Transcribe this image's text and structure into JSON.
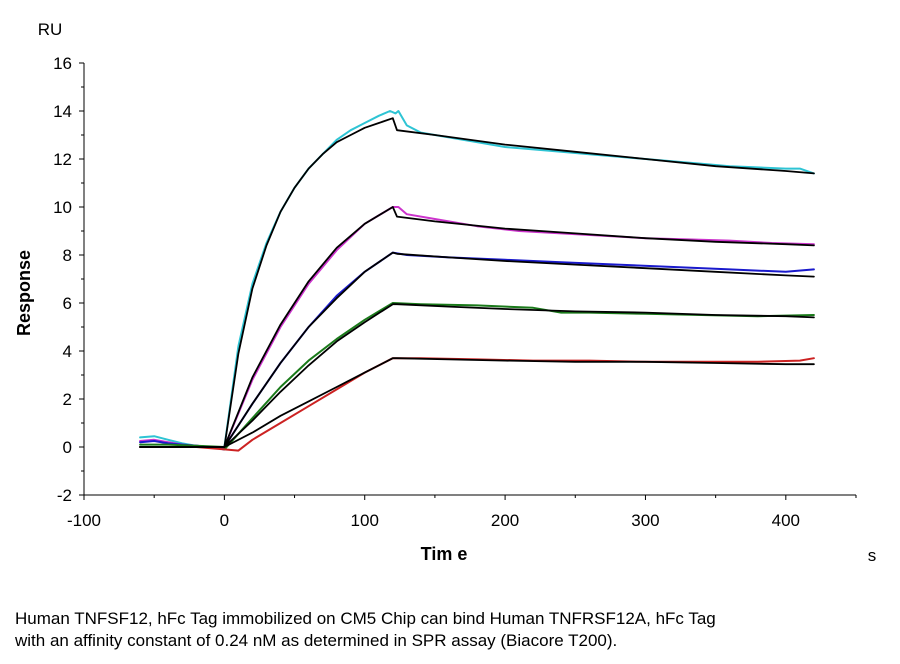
{
  "chart_data": {
    "type": "line",
    "xlabel": "Tim e",
    "xunit": "s",
    "ylabel": "Response",
    "yunit": "RU",
    "xlim": [
      -100,
      450
    ],
    "ylim": [
      -2,
      16
    ],
    "xticks": [
      -100,
      0,
      100,
      200,
      300,
      400
    ],
    "yticks": [
      -2,
      0,
      2,
      4,
      6,
      8,
      10,
      12,
      14,
      16
    ],
    "grid": false,
    "legend": "none",
    "series": [
      {
        "color": "#2ec4d4",
        "points": [
          [
            -60,
            0.4
          ],
          [
            -50,
            0.45
          ],
          [
            -40,
            0.3
          ],
          [
            -30,
            0.15
          ],
          [
            -20,
            0.05
          ],
          [
            -10,
            0.0
          ],
          [
            0,
            -0.1
          ],
          [
            0,
            0
          ],
          [
            10,
            4.2
          ],
          [
            20,
            6.8
          ],
          [
            30,
            8.5
          ],
          [
            40,
            9.8
          ],
          [
            50,
            10.8
          ],
          [
            60,
            11.6
          ],
          [
            70,
            12.2
          ],
          [
            80,
            12.8
          ],
          [
            90,
            13.2
          ],
          [
            100,
            13.5
          ],
          [
            110,
            13.8
          ],
          [
            118,
            14.0
          ],
          [
            122,
            13.9
          ],
          [
            124,
            14.0
          ],
          [
            130,
            13.4
          ],
          [
            140,
            13.1
          ],
          [
            160,
            12.9
          ],
          [
            180,
            12.7
          ],
          [
            200,
            12.5
          ],
          [
            220,
            12.4
          ],
          [
            240,
            12.3
          ],
          [
            260,
            12.2
          ],
          [
            280,
            12.1
          ],
          [
            300,
            12.0
          ],
          [
            320,
            11.9
          ],
          [
            340,
            11.8
          ],
          [
            360,
            11.7
          ],
          [
            380,
            11.65
          ],
          [
            400,
            11.6
          ],
          [
            410,
            11.6
          ],
          [
            420,
            11.4
          ]
        ]
      },
      {
        "color": "#cc33cc",
        "points": [
          [
            -60,
            0.25
          ],
          [
            -50,
            0.3
          ],
          [
            -40,
            0.2
          ],
          [
            -30,
            0.1
          ],
          [
            -20,
            0.05
          ],
          [
            -10,
            0.0
          ],
          [
            0,
            -0.1
          ],
          [
            0,
            0
          ],
          [
            20,
            2.8
          ],
          [
            40,
            5.0
          ],
          [
            60,
            6.8
          ],
          [
            80,
            8.2
          ],
          [
            100,
            9.3
          ],
          [
            120,
            10.0
          ],
          [
            124,
            10.0
          ],
          [
            130,
            9.7
          ],
          [
            150,
            9.5
          ],
          [
            180,
            9.2
          ],
          [
            210,
            9.0
          ],
          [
            240,
            8.9
          ],
          [
            270,
            8.8
          ],
          [
            300,
            8.7
          ],
          [
            330,
            8.65
          ],
          [
            360,
            8.6
          ],
          [
            390,
            8.5
          ],
          [
            420,
            8.45
          ]
        ]
      },
      {
        "color": "#1a1acc",
        "points": [
          [
            -60,
            0.2
          ],
          [
            -50,
            0.25
          ],
          [
            -40,
            0.15
          ],
          [
            -30,
            0.1
          ],
          [
            -20,
            0.05
          ],
          [
            -10,
            0.0
          ],
          [
            0,
            -0.1
          ],
          [
            0,
            0
          ],
          [
            20,
            1.8
          ],
          [
            40,
            3.5
          ],
          [
            60,
            5.0
          ],
          [
            80,
            6.3
          ],
          [
            100,
            7.3
          ],
          [
            120,
            8.1
          ],
          [
            130,
            8.0
          ],
          [
            160,
            7.9
          ],
          [
            200,
            7.8
          ],
          [
            240,
            7.7
          ],
          [
            280,
            7.6
          ],
          [
            320,
            7.5
          ],
          [
            360,
            7.4
          ],
          [
            400,
            7.3
          ],
          [
            420,
            7.4
          ]
        ]
      },
      {
        "color": "#1a7a1a",
        "points": [
          [
            -60,
            0.1
          ],
          [
            -40,
            0.1
          ],
          [
            -20,
            0.05
          ],
          [
            0,
            0.0
          ],
          [
            0,
            -0.1
          ],
          [
            20,
            1.2
          ],
          [
            40,
            2.5
          ],
          [
            60,
            3.6
          ],
          [
            80,
            4.5
          ],
          [
            100,
            5.3
          ],
          [
            120,
            6.0
          ],
          [
            140,
            5.95
          ],
          [
            180,
            5.9
          ],
          [
            220,
            5.8
          ],
          [
            240,
            5.6
          ],
          [
            260,
            5.6
          ],
          [
            300,
            5.55
          ],
          [
            340,
            5.5
          ],
          [
            380,
            5.45
          ],
          [
            420,
            5.5
          ]
        ]
      },
      {
        "color": "#cc2222",
        "points": [
          [
            -60,
            0.0
          ],
          [
            -40,
            0.0
          ],
          [
            -20,
            0.0
          ],
          [
            0,
            -0.1
          ],
          [
            10,
            -0.15
          ],
          [
            20,
            0.3
          ],
          [
            40,
            1.0
          ],
          [
            60,
            1.7
          ],
          [
            80,
            2.4
          ],
          [
            100,
            3.1
          ],
          [
            120,
            3.7
          ],
          [
            140,
            3.7
          ],
          [
            180,
            3.65
          ],
          [
            220,
            3.6
          ],
          [
            260,
            3.6
          ],
          [
            300,
            3.55
          ],
          [
            340,
            3.55
          ],
          [
            380,
            3.55
          ],
          [
            410,
            3.6
          ],
          [
            420,
            3.7
          ]
        ]
      },
      {
        "color": "#000000",
        "points": [
          [
            -60,
            0.0
          ],
          [
            0,
            0.0
          ],
          [
            10,
            3.9
          ],
          [
            20,
            6.6
          ],
          [
            30,
            8.4
          ],
          [
            40,
            9.8
          ],
          [
            50,
            10.8
          ],
          [
            60,
            11.6
          ],
          [
            70,
            12.2
          ],
          [
            80,
            12.7
          ],
          [
            90,
            13.0
          ],
          [
            100,
            13.3
          ],
          [
            110,
            13.5
          ],
          [
            120,
            13.7
          ],
          [
            123,
            13.2
          ],
          [
            150,
            13.0
          ],
          [
            200,
            12.6
          ],
          [
            250,
            12.3
          ],
          [
            300,
            12.0
          ],
          [
            350,
            11.7
          ],
          [
            400,
            11.5
          ],
          [
            420,
            11.4
          ]
        ]
      },
      {
        "color": "#000000",
        "points": [
          [
            -60,
            0.0
          ],
          [
            0,
            0.0
          ],
          [
            20,
            2.9
          ],
          [
            40,
            5.1
          ],
          [
            60,
            6.9
          ],
          [
            80,
            8.3
          ],
          [
            100,
            9.3
          ],
          [
            120,
            10.0
          ],
          [
            123,
            9.6
          ],
          [
            150,
            9.4
          ],
          [
            200,
            9.1
          ],
          [
            250,
            8.9
          ],
          [
            300,
            8.7
          ],
          [
            350,
            8.55
          ],
          [
            400,
            8.45
          ],
          [
            420,
            8.4
          ]
        ]
      },
      {
        "color": "#000000",
        "points": [
          [
            -60,
            0.0
          ],
          [
            0,
            0.0
          ],
          [
            20,
            1.8
          ],
          [
            40,
            3.5
          ],
          [
            60,
            5.0
          ],
          [
            80,
            6.2
          ],
          [
            100,
            7.3
          ],
          [
            120,
            8.1
          ],
          [
            123,
            8.05
          ],
          [
            160,
            7.9
          ],
          [
            200,
            7.75
          ],
          [
            250,
            7.6
          ],
          [
            300,
            7.45
          ],
          [
            350,
            7.3
          ],
          [
            400,
            7.15
          ],
          [
            420,
            7.1
          ]
        ]
      },
      {
        "color": "#000000",
        "points": [
          [
            -60,
            0.0
          ],
          [
            0,
            0.0
          ],
          [
            20,
            1.1
          ],
          [
            40,
            2.3
          ],
          [
            60,
            3.4
          ],
          [
            80,
            4.4
          ],
          [
            100,
            5.2
          ],
          [
            120,
            5.95
          ],
          [
            123,
            5.95
          ],
          [
            160,
            5.85
          ],
          [
            200,
            5.75
          ],
          [
            250,
            5.65
          ],
          [
            300,
            5.6
          ],
          [
            350,
            5.5
          ],
          [
            400,
            5.45
          ],
          [
            420,
            5.4
          ]
        ]
      },
      {
        "color": "#000000",
        "points": [
          [
            -60,
            0.0
          ],
          [
            0,
            0.0
          ],
          [
            20,
            0.6
          ],
          [
            40,
            1.3
          ],
          [
            60,
            1.9
          ],
          [
            80,
            2.5
          ],
          [
            100,
            3.1
          ],
          [
            120,
            3.7
          ],
          [
            123,
            3.7
          ],
          [
            160,
            3.65
          ],
          [
            200,
            3.6
          ],
          [
            250,
            3.55
          ],
          [
            300,
            3.55
          ],
          [
            350,
            3.5
          ],
          [
            400,
            3.45
          ],
          [
            420,
            3.45
          ]
        ]
      }
    ]
  },
  "caption": {
    "line1": "Human TNFSF12, hFc Tag immobilized on CM5 Chip can bind Human TNFRSF12A, hFc Tag",
    "line2": "with an affinity constant of 0.24 nM as determined in SPR assay (Biacore T200)."
  }
}
